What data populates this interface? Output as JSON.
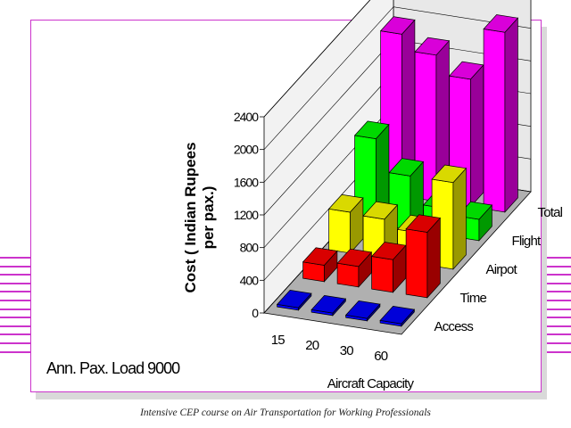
{
  "footer_text": "Intensive CEP course on Air Transportation for Working  Professionals",
  "annotation": "Ann. Pax. Load 9000",
  "colors": {
    "slide_border": "#cc33cc",
    "deco_lines": "#cc33cc",
    "wall": "#e8e8e8",
    "floor": "#b0b0b0"
  },
  "chart_data": {
    "type": "bar",
    "subtype": "3d-clustered-column",
    "ylabel_lines": [
      "Cost ( Indian Rupees",
      "per pax.)"
    ],
    "xlabel": "Aircraft Capacity",
    "categories": [
      "15",
      "20",
      "30",
      "60"
    ],
    "ylim": [
      0,
      2400
    ],
    "yticks": [
      "0",
      "400",
      "800",
      "1200",
      "1600",
      "2000",
      "2400"
    ],
    "grid": true,
    "series": [
      {
        "name": "Access",
        "color": "#0000ff",
        "values": [
          30,
          30,
          30,
          30
        ]
      },
      {
        "name": "Time",
        "color": "#ff0000",
        "values": [
          200,
          250,
          400,
          800
        ]
      },
      {
        "name": "Airpot",
        "color": "#ffff00",
        "values": [
          500,
          480,
          380,
          1060
        ]
      },
      {
        "name": "Flight",
        "color": "#00ff00",
        "values": [
          1050,
          660,
          330,
          260
        ]
      },
      {
        "name": "Total",
        "color": "#ff00ff",
        "values": [
          1980,
          1790,
          1560,
          2200
        ]
      }
    ]
  }
}
